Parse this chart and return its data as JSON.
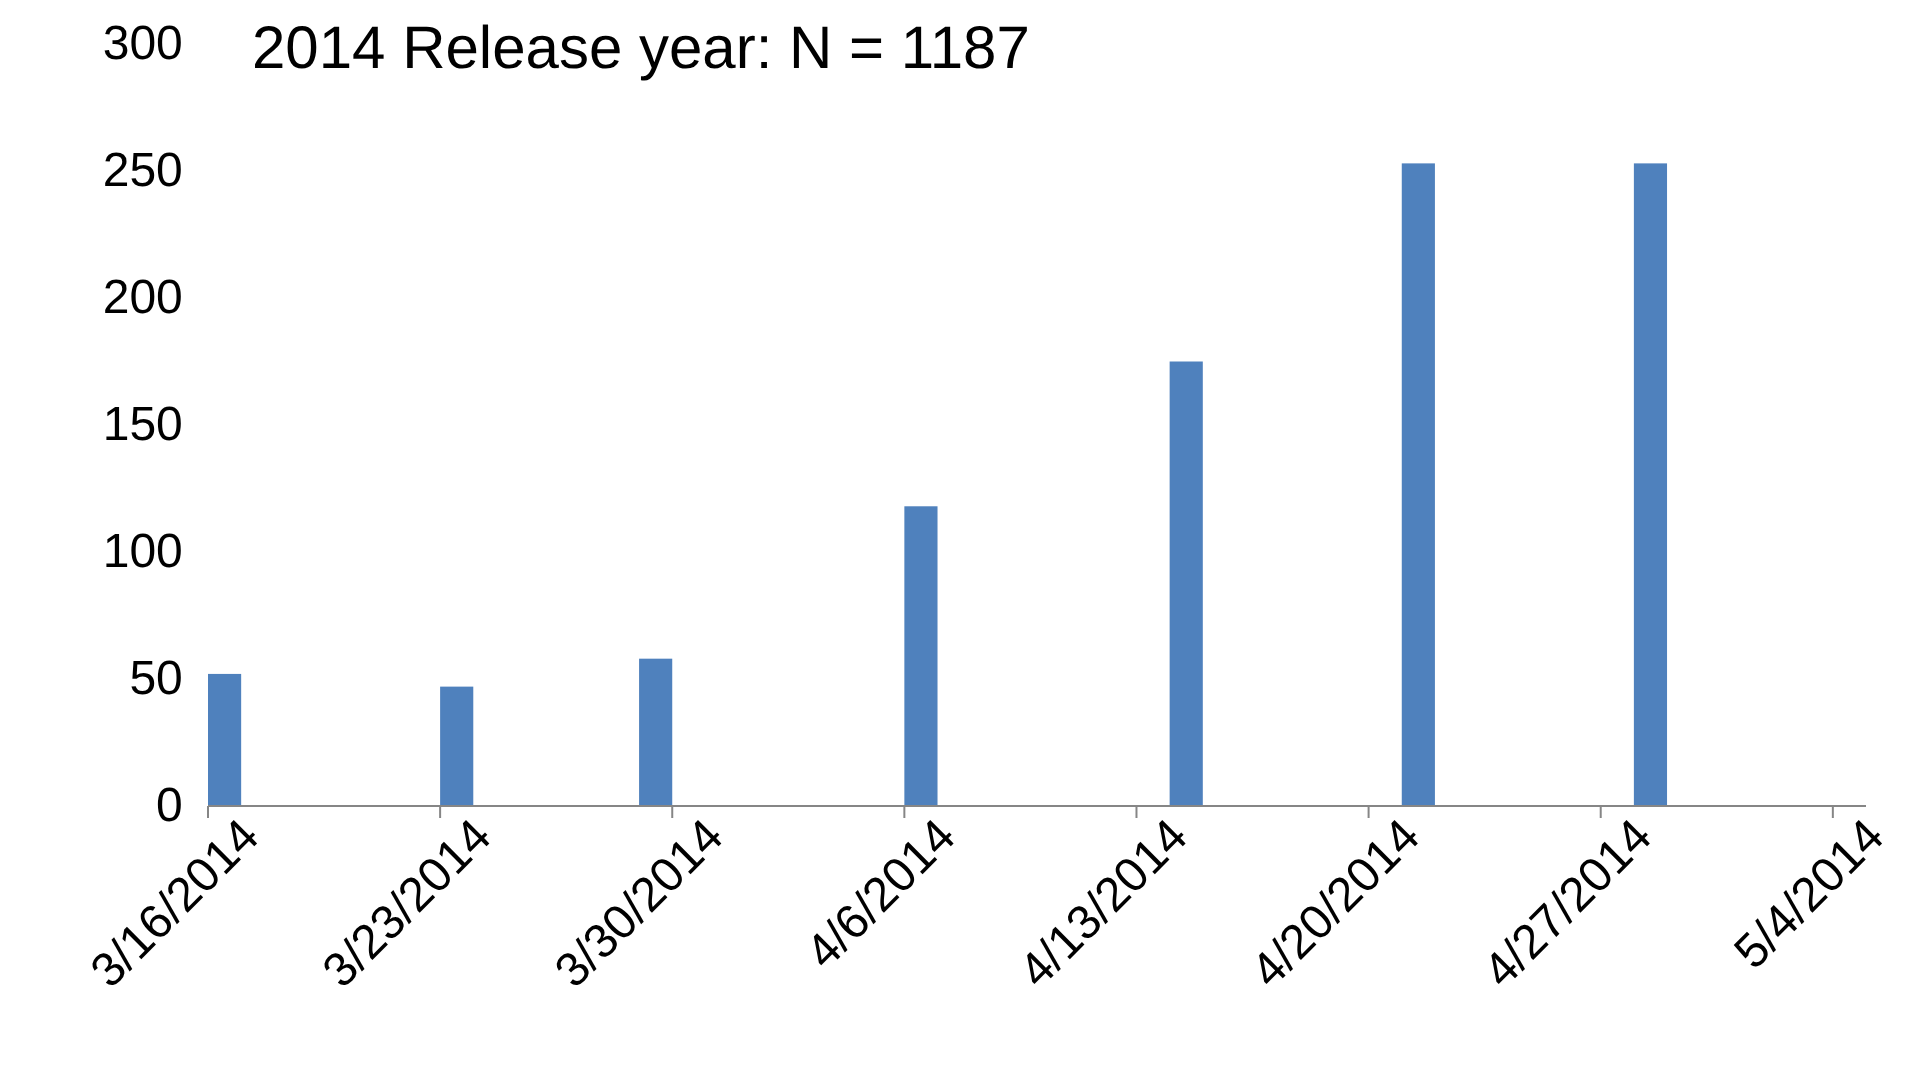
{
  "chart_data": {
    "type": "bar",
    "title": "2014 Release year: N = 1187",
    "x": [
      "2014-03-16",
      "2014-03-23",
      "2014-03-29",
      "2014-04-06",
      "2014-04-14",
      "2014-04-21",
      "2014-04-28"
    ],
    "values": [
      52,
      47,
      58,
      118,
      175,
      253,
      253
    ],
    "color": "#4f81bd",
    "xlim": [
      "2014-03-16",
      "2014-05-05"
    ],
    "xticks": [
      {
        "value": "2014-03-16",
        "label": "3/16/2014"
      },
      {
        "value": "2014-03-23",
        "label": "3/23/2014"
      },
      {
        "value": "2014-03-30",
        "label": "3/30/2014"
      },
      {
        "value": "2014-04-06",
        "label": "4/6/2014"
      },
      {
        "value": "2014-04-13",
        "label": "4/13/2014"
      },
      {
        "value": "2014-04-20",
        "label": "4/20/2014"
      },
      {
        "value": "2014-04-27",
        "label": "4/27/2014"
      },
      {
        "value": "2014-05-04",
        "label": "5/4/2014"
      }
    ],
    "ylim": [
      0,
      300
    ],
    "yticks": [
      0,
      50,
      100,
      150,
      200,
      250,
      300
    ],
    "grid": false
  }
}
